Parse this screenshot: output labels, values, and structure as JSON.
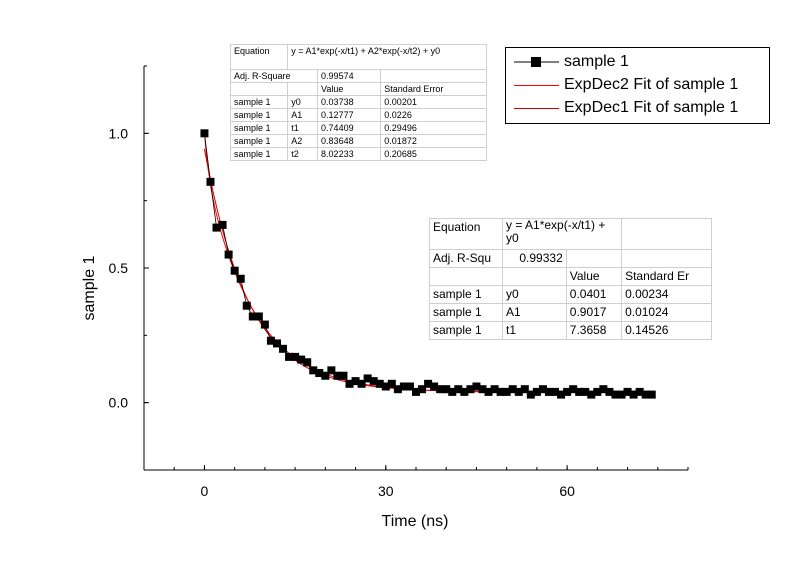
{
  "chart_data": {
    "type": "scatter",
    "xlabel": "Time (ns)",
    "ylabel": "sample 1",
    "xlim": [
      -10,
      80
    ],
    "ylim": [
      -0.25,
      1.25
    ],
    "xticks": [
      0,
      30,
      60
    ],
    "yticks": [
      0.0,
      0.5,
      1.0
    ],
    "xtick_labels": [
      "0",
      "30",
      "60"
    ],
    "ytick_labels": [
      "0.0",
      "0.5",
      "1.0"
    ],
    "legend_position": "top-right",
    "series": [
      {
        "name": "sample 1",
        "style": "scatter",
        "color": "#000000",
        "x": [
          0,
          1,
          2,
          3,
          4,
          5,
          6,
          7,
          8,
          9,
          10,
          11,
          12,
          13,
          14,
          15,
          16,
          17,
          18,
          19,
          20,
          21,
          22,
          23,
          24,
          25,
          26,
          27,
          28,
          29,
          30,
          31,
          32,
          33,
          34,
          35,
          36,
          37,
          38,
          39,
          40,
          41,
          42,
          43,
          44,
          45,
          46,
          47,
          48,
          49,
          50,
          51,
          52,
          53,
          54,
          55,
          56,
          57,
          58,
          59,
          60,
          61,
          62,
          63,
          64,
          65,
          66,
          67,
          68,
          69,
          70,
          71,
          72,
          73,
          74
        ],
        "values": [
          1.0,
          0.82,
          0.65,
          0.66,
          0.55,
          0.49,
          0.46,
          0.36,
          0.32,
          0.32,
          0.29,
          0.23,
          0.22,
          0.2,
          0.17,
          0.17,
          0.16,
          0.15,
          0.12,
          0.11,
          0.1,
          0.12,
          0.1,
          0.1,
          0.07,
          0.08,
          0.07,
          0.09,
          0.08,
          0.07,
          0.06,
          0.07,
          0.05,
          0.06,
          0.06,
          0.04,
          0.05,
          0.07,
          0.06,
          0.05,
          0.05,
          0.04,
          0.05,
          0.04,
          0.05,
          0.06,
          0.05,
          0.04,
          0.05,
          0.04,
          0.04,
          0.05,
          0.04,
          0.05,
          0.03,
          0.04,
          0.05,
          0.04,
          0.04,
          0.03,
          0.04,
          0.05,
          0.04,
          0.04,
          0.03,
          0.04,
          0.05,
          0.04,
          0.03,
          0.03,
          0.04,
          0.03,
          0.04,
          0.03,
          0.03
        ]
      },
      {
        "name": "ExpDec2 Fit of sample 1",
        "style": "line",
        "color": "#ff0000",
        "model": "expdec2",
        "y0": 0.03738,
        "A1": 0.12777,
        "t1": 0.74409,
        "A2": 0.83648,
        "t2": 8.02233
      },
      {
        "name": "ExpDec1 Fit of sample 1",
        "style": "line",
        "color": "#cc0000",
        "model": "expdec1",
        "y0": 0.0401,
        "A1": 0.9017,
        "t1": 7.3658
      }
    ]
  },
  "fit_tables": {
    "expdec2": {
      "equation_label": "Equation",
      "equation": "y = A1*exp(-x/t1) + A2*exp(-x/t2) + y0",
      "r2_label": "Adj. R-Square",
      "r2_value": "0.99574",
      "header": [
        "",
        "",
        "Value",
        "Standard Error"
      ],
      "rows": [
        [
          "sample 1",
          "y0",
          "0.03738",
          "0.00201"
        ],
        [
          "sample 1",
          "A1",
          "0.12777",
          "0.0226"
        ],
        [
          "sample 1",
          "t1",
          "0.74409",
          "0.29496"
        ],
        [
          "sample 1",
          "A2",
          "0.83648",
          "0.01872"
        ],
        [
          "sample 1",
          "t2",
          "8.02233",
          "0.20685"
        ]
      ]
    },
    "expdec1": {
      "equation_label": "Equation",
      "equation": "y = A1*exp(-x/t1) + y0",
      "r2_label": "Adj. R-Squ",
      "r2_value": "0.99332",
      "header": [
        "",
        "",
        "Value",
        "Standard Er"
      ],
      "rows": [
        [
          "sample 1",
          "y0",
          "0.0401",
          "0.00234"
        ],
        [
          "sample 1",
          "A1",
          "0.9017",
          "0.01024"
        ],
        [
          "sample 1",
          "t1",
          "7.3658",
          "0.14526"
        ]
      ]
    }
  }
}
